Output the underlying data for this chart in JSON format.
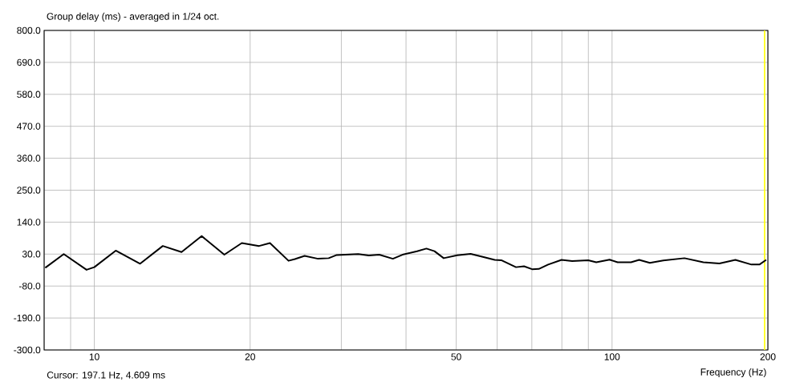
{
  "chart_data": {
    "type": "line",
    "title": "Group delay (ms) - averaged in 1/24 oct.",
    "xlabel": "Frequency (Hz)",
    "annotations": [
      "Cursor: 197.1 Hz, 4.609 ms"
    ],
    "log": "x",
    "grid": true,
    "marker": "none",
    "line_style": "solid",
    "xlim": [
      8,
      200
    ],
    "xticks": [
      {
        "value": 8,
        "label": null
      },
      {
        "value": 9,
        "label": null
      },
      10,
      20,
      {
        "value": 30,
        "label": null
      },
      {
        "value": 40,
        "label": null
      },
      50,
      {
        "value": 60,
        "label": null
      },
      {
        "value": 70,
        "label": null
      },
      {
        "value": 80,
        "label": null
      },
      {
        "value": 90,
        "label": null
      },
      100,
      200
    ],
    "ylim": [
      -300,
      800
    ],
    "yticks": [
      {
        "value": 800,
        "label": "800.0"
      },
      {
        "value": 690,
        "label": "690.0"
      },
      {
        "value": 580,
        "label": "580.0"
      },
      {
        "value": 470,
        "label": "470.0"
      },
      {
        "value": 360,
        "label": "360.0"
      },
      {
        "value": 250,
        "label": "250.0"
      },
      {
        "value": 140,
        "label": "140.0"
      },
      {
        "value": 30,
        "label": "30.0"
      },
      {
        "value": -80,
        "label": "-80.0"
      },
      {
        "value": -190,
        "label": "-190.0"
      },
      {
        "value": -300,
        "label": "-300.0"
      }
    ],
    "ref_lines": [
      {
        "axis": "x",
        "value": 197.1,
        "color": "#ffff00"
      }
    ],
    "x": [
      8.04,
      8.73,
      9.66,
      10,
      11.0,
      12.26,
      13.56,
      14.74,
      16.12,
      17.83,
      19.27,
      20.81,
      21.84,
      23.72,
      24.41,
      25.48,
      27.05,
      28.36,
      29.39,
      32.34,
      33.9,
      35.51,
      37.73,
      39.54,
      42.01,
      43.8,
      45.39,
      47.3,
      50.22,
      53.31,
      55.89,
      59.34,
      61.1,
      65.23,
      67.61,
      70.07,
      72.2,
      75.26,
      79.89,
      83.75,
      89.95,
      93.22,
      98.9,
      102.5,
      108.8,
      112.8,
      118.3,
      125.6,
      138.0,
      150.1,
      161.2,
      173.1,
      185.9,
      192.6,
      198.5
    ],
    "series": [
      {
        "color": "#000000",
        "values": [
          -17,
          30,
          -24,
          -15,
          42,
          -3,
          58,
          37,
          92,
          28,
          68,
          58,
          68,
          7,
          13,
          24,
          14,
          16,
          27,
          30,
          25,
          28,
          14,
          29,
          40,
          49,
          40,
          16,
          26,
          31,
          22,
          10,
          9,
          -15,
          -12,
          -22,
          -21,
          -6,
          10,
          6,
          9,
          2,
          11,
          2,
          2,
          10,
          0,
          8,
          16,
          2,
          -2,
          10,
          -6,
          -6,
          10
        ]
      }
    ]
  }
}
